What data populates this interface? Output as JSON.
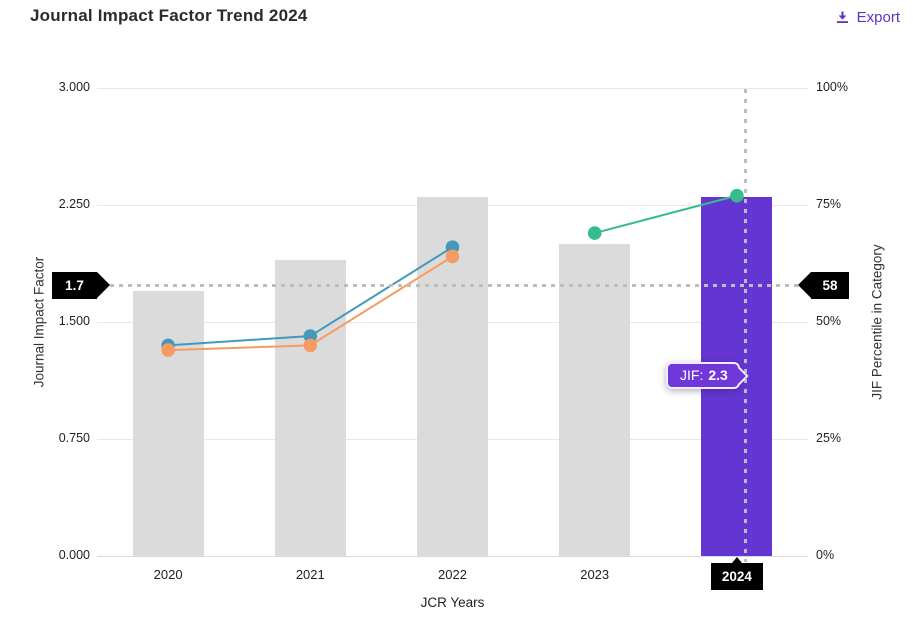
{
  "header": {
    "title": "Journal Impact Factor Trend 2024",
    "export_label": "Export"
  },
  "chart_data": {
    "type": "bar",
    "title": "Journal Impact Factor Trend 2024",
    "xlabel": "JCR Years",
    "ylabel_left": "Journal Impact Factor",
    "ylabel_right": "JIF Percentile in Category",
    "categories": [
      "2020",
      "2021",
      "2022",
      "2023",
      "2024"
    ],
    "left_axis": {
      "min": 0,
      "max": 3,
      "ticks": [
        "3.000",
        "2.250",
        "1.500",
        "0.750",
        "0.000"
      ]
    },
    "right_axis": {
      "min": 0,
      "max": 100,
      "ticks": [
        "100%",
        "75%",
        "50%",
        "25%",
        "0%"
      ]
    },
    "bars": {
      "name": "Journal Impact Factor",
      "values": [
        1.7,
        1.9,
        2.3,
        2.0,
        2.3
      ],
      "highlight_index": 4
    },
    "series": [
      {
        "name": "teal-line",
        "axis": "right",
        "color": "#4499ba",
        "values": [
          45,
          47,
          66,
          null,
          null
        ]
      },
      {
        "name": "orange-line",
        "axis": "right",
        "color": "#f89b63",
        "values": [
          44,
          45,
          64,
          null,
          null
        ]
      },
      {
        "name": "green-line",
        "axis": "right",
        "color": "#36bd8d",
        "values": [
          null,
          null,
          null,
          69,
          77
        ]
      }
    ],
    "crosshair": {
      "year": "2024",
      "jif_value": "1.7",
      "percentile_value": "58"
    },
    "tooltip": {
      "label": "JIF:",
      "value": "2.3"
    },
    "colors": {
      "bar_default": "#dbdbdb",
      "bar_highlight": "#6435d2",
      "accent_purple": "#5e33bf",
      "badge_bg": "#000000",
      "gridline": "#e8e8e8",
      "crosshair": "#bdbdbd"
    },
    "grid": true,
    "legend": "none"
  }
}
